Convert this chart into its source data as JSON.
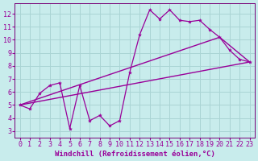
{
  "title": "",
  "xlabel": "Windchill (Refroidissement éolien,°C)",
  "ylabel": "",
  "bg_color": "#c8ecec",
  "grid_color": "#aad4d4",
  "line_color": "#990099",
  "xlim": [
    -0.5,
    23.5
  ],
  "ylim": [
    2.5,
    12.8
  ],
  "xticks": [
    0,
    1,
    2,
    3,
    4,
    5,
    6,
    7,
    8,
    9,
    10,
    11,
    12,
    13,
    14,
    15,
    16,
    17,
    18,
    19,
    20,
    21,
    22,
    23
  ],
  "yticks": [
    3,
    4,
    5,
    6,
    7,
    8,
    9,
    10,
    11,
    12
  ],
  "line1_x": [
    0,
    1,
    2,
    3,
    4,
    5,
    6,
    7,
    8,
    9,
    10,
    11,
    12,
    13,
    14,
    15,
    16,
    17,
    18,
    19,
    20,
    21,
    22,
    23
  ],
  "line1_y": [
    5.0,
    4.7,
    5.9,
    6.5,
    6.7,
    3.2,
    6.5,
    3.8,
    4.2,
    3.4,
    3.8,
    7.5,
    10.4,
    12.3,
    11.6,
    12.3,
    11.5,
    11.4,
    11.5,
    10.8,
    10.2,
    9.2,
    8.5,
    8.3
  ],
  "line2_x": [
    0,
    23
  ],
  "line2_y": [
    5.0,
    8.3
  ],
  "line3_x": [
    0,
    20,
    23
  ],
  "line3_y": [
    5.0,
    10.2,
    8.3
  ],
  "tick_fontsize": 6,
  "xlabel_fontsize": 6.5,
  "tick_color": "#990099",
  "xlabel_color": "#990099",
  "spine_color": "#770077"
}
